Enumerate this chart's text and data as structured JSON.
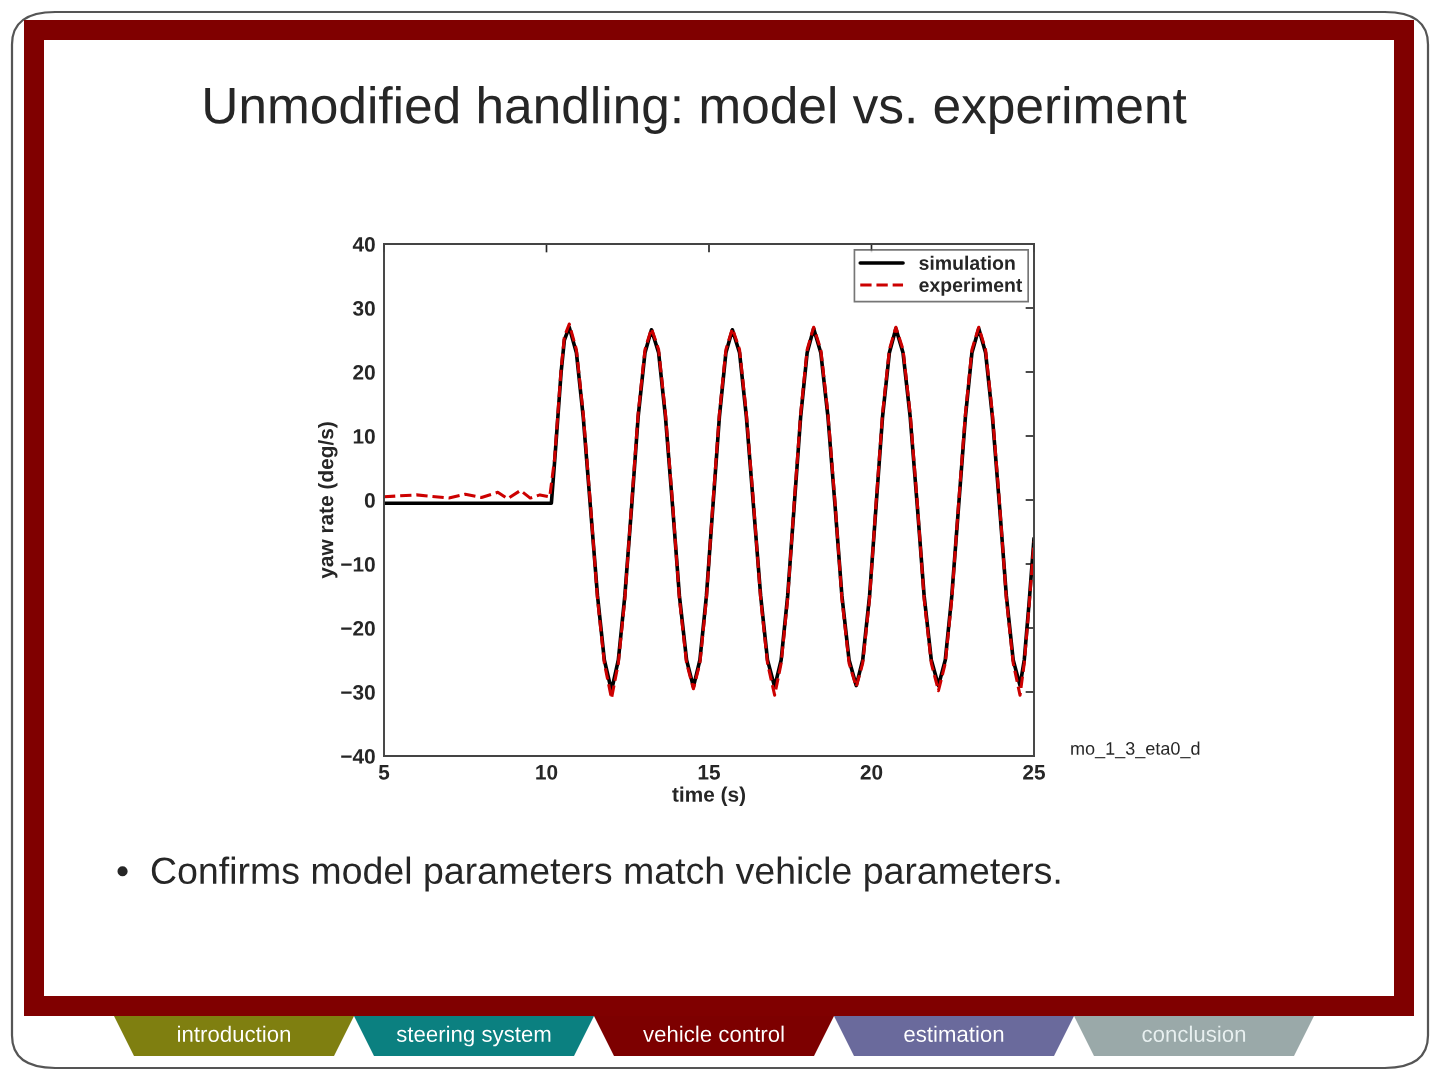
{
  "chart_data": {
    "type": "line",
    "title": "Unmodified handling: model vs. experiment",
    "xlabel": "time (s)",
    "ylabel": "yaw rate (deg/s)",
    "xlim": [
      5,
      25
    ],
    "ylim": [
      -40,
      40
    ],
    "xticks": [
      5,
      10,
      15,
      20,
      25
    ],
    "yticks": [
      -40,
      -30,
      -20,
      -10,
      0,
      10,
      20,
      30,
      40
    ],
    "grid": false,
    "legend": "top right",
    "series": [
      {
        "name": "simulation",
        "color": "#000000",
        "line_style": "solid",
        "x": [
          5,
          10.15,
          10.25,
          10.35,
          10.45,
          10.55,
          10.7,
          10.92,
          11.13,
          11.35,
          11.57,
          11.78,
          12.0,
          12.21,
          12.41,
          12.62,
          12.82,
          13.03,
          13.23,
          13.45,
          13.66,
          13.88,
          14.09,
          14.31,
          14.52,
          14.72,
          14.92,
          15.12,
          15.32,
          15.52,
          15.72,
          15.94,
          16.15,
          16.37,
          16.59,
          16.8,
          17.02,
          17.22,
          17.42,
          17.62,
          17.82,
          18.02,
          18.22,
          18.44,
          18.66,
          18.88,
          19.09,
          19.31,
          19.53,
          19.73,
          19.94,
          20.14,
          20.34,
          20.55,
          20.75,
          20.97,
          21.19,
          21.41,
          21.62,
          21.84,
          22.06,
          22.27,
          22.47,
          22.68,
          22.89,
          23.09,
          23.3,
          23.51,
          23.72,
          23.94,
          24.15,
          24.36,
          24.57,
          24.7,
          24.85,
          25
        ],
        "values": [
          -0.5,
          -0.5,
          6,
          13,
          20,
          25,
          27,
          23,
          13,
          -1,
          -15,
          -25,
          -29.8,
          -25,
          -15,
          -1,
          13,
          23,
          26.6,
          23,
          13,
          -1,
          -15,
          -25,
          -29.2,
          -25,
          -15,
          -1,
          13,
          23,
          26.6,
          23,
          13,
          -1,
          -15,
          -25,
          -29.2,
          -25,
          -15,
          -1,
          13,
          23,
          26.8,
          23,
          13,
          -1,
          -15,
          -25,
          -29,
          -25,
          -15,
          -1,
          13,
          23,
          26.8,
          23,
          13,
          -1,
          -15,
          -25,
          -29,
          -25,
          -15,
          -1,
          13,
          23,
          26.8,
          23,
          13,
          -1,
          -15,
          -25,
          -29,
          -25,
          -16,
          -6
        ]
      },
      {
        "name": "experiment",
        "color": "#cc0000",
        "line_style": "dashed",
        "x": [
          5,
          6,
          7,
          7.5,
          8,
          8.5,
          8.8,
          9.2,
          9.5,
          9.8,
          10.1,
          10.25,
          10.35,
          10.45,
          10.55,
          10.7,
          10.92,
          11.13,
          11.35,
          11.57,
          11.78,
          12.0,
          12.21,
          12.41,
          12.62,
          12.82,
          13.03,
          13.23,
          13.45,
          13.66,
          13.88,
          14.09,
          14.31,
          14.52,
          14.72,
          14.92,
          15.12,
          15.32,
          15.52,
          15.72,
          15.94,
          16.15,
          16.37,
          16.59,
          16.8,
          17.02,
          17.22,
          17.42,
          17.62,
          17.82,
          18.02,
          18.22,
          18.44,
          18.66,
          18.88,
          19.09,
          19.31,
          19.53,
          19.73,
          19.94,
          20.14,
          20.34,
          20.55,
          20.75,
          20.97,
          21.19,
          21.41,
          21.62,
          21.84,
          22.06,
          22.27,
          22.47,
          22.68,
          22.89,
          23.09,
          23.3,
          23.51,
          23.72,
          23.94,
          24.15,
          24.36,
          24.57,
          24.7,
          24.85,
          25
        ],
        "values": [
          0.5,
          0.8,
          0.3,
          0.9,
          0.4,
          1.2,
          0.2,
          1.5,
          0.3,
          0.8,
          0.5,
          6.5,
          13.5,
          20.5,
          25.5,
          27.5,
          23.5,
          13.5,
          -0.5,
          -15.5,
          -25.5,
          -31,
          -25.5,
          -15.5,
          -0.5,
          13.5,
          23.5,
          26.8,
          23.5,
          13.5,
          -0.5,
          -15.5,
          -25.5,
          -29.5,
          -25.5,
          -15.5,
          -0.5,
          13.5,
          23.5,
          26.8,
          23.5,
          13.5,
          -0.5,
          -15.5,
          -25.5,
          -30.5,
          -25.5,
          -15.5,
          -0.5,
          13.5,
          23.5,
          27,
          23.5,
          13.5,
          -0.5,
          -15.5,
          -25.5,
          -29.2,
          -25.5,
          -15.5,
          -0.5,
          13.5,
          23.5,
          27,
          23.5,
          13.5,
          -0.5,
          -15.5,
          -25.5,
          -29.8,
          -25.5,
          -15.5,
          -0.5,
          13.5,
          23.5,
          27,
          23.5,
          13.5,
          -0.5,
          -15.5,
          -25.5,
          -30.5,
          -25.5,
          -16.5,
          -6.5
        ]
      }
    ],
    "annotations": [
      "•  Confirms model parameters match vehicle parameters.",
      "mo_1_3_eta0_d",
      "introduction",
      "steering system",
      "vehicle control",
      "estimation",
      "conclusion"
    ]
  }
}
